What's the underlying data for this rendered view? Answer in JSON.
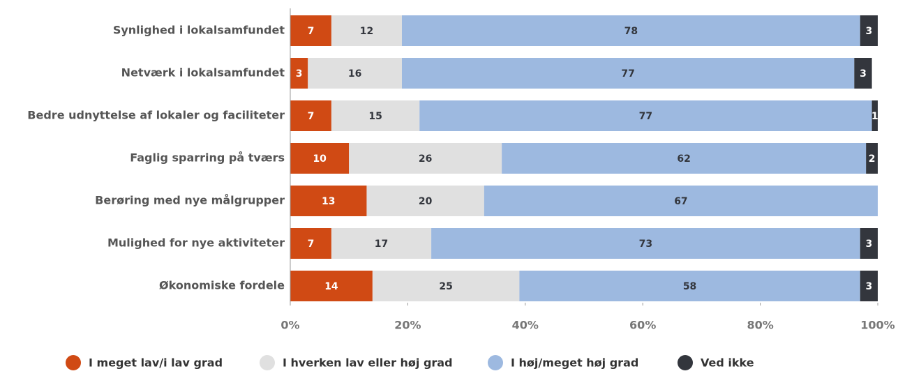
{
  "chart_data": {
    "type": "stacked-bar",
    "orientation": "horizontal",
    "categories": [
      "Synlighed i lokalsamfundet",
      "Netværk i lokalsamfundet",
      "Bedre udnyttelse af lokaler og faciliteter",
      "Faglig sparring på tværs",
      "Berøring med nye målgrupper",
      "Mulighed for nye aktiviteter",
      "Økonomiske fordele"
    ],
    "series": [
      {
        "name": "I meget lav/i lav grad",
        "color": "#d04a14",
        "label_color": "#ffffff",
        "values": [
          7,
          3,
          7,
          10,
          13,
          7,
          14
        ]
      },
      {
        "name": "I hverken lav eller høj grad",
        "color": "#e0e0e0",
        "label_color": "#33363d",
        "values": [
          12,
          16,
          15,
          26,
          20,
          17,
          25
        ]
      },
      {
        "name": "I høj/meget høj grad",
        "color": "#9db9e0",
        "label_color": "#33363d",
        "values": [
          78,
          77,
          77,
          62,
          67,
          73,
          58
        ]
      },
      {
        "name": "Ved ikke",
        "color": "#33363d",
        "label_color": "#ffffff",
        "values": [
          3,
          3,
          1,
          2,
          null,
          3,
          3
        ]
      }
    ],
    "xlim": [
      0,
      100
    ],
    "xticks": [
      {
        "value": 0,
        "label": "0%"
      },
      {
        "value": 20,
        "label": "20%"
      },
      {
        "value": 40,
        "label": "40%"
      },
      {
        "value": 60,
        "label": "60%"
      },
      {
        "value": 80,
        "label": "80%"
      },
      {
        "value": 100,
        "label": "100%"
      }
    ],
    "legend": "bottom"
  }
}
